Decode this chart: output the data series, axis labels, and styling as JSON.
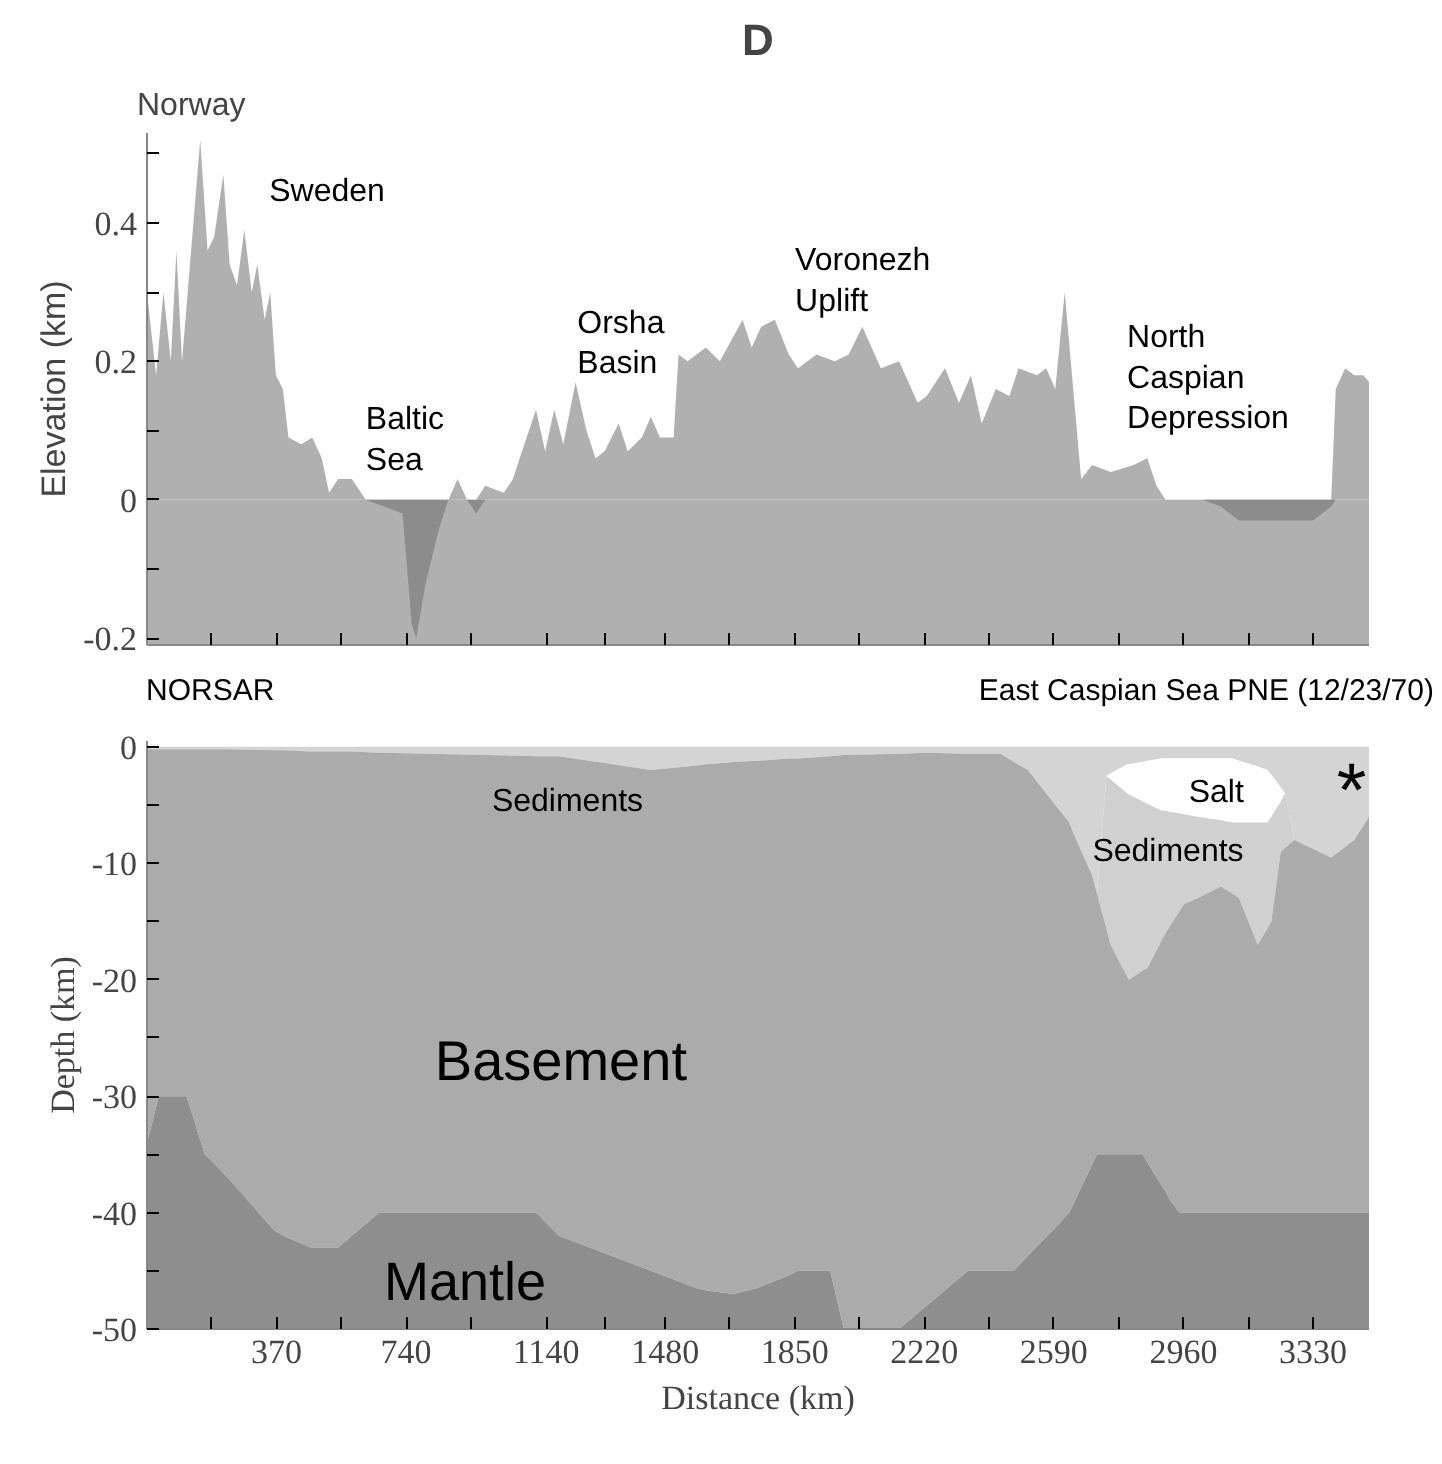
{
  "chart_data": [
    {
      "type": "area",
      "title": "D",
      "ylabel": "Elevation (km)",
      "tick_labels": "y",
      "grid": false,
      "xlim": [
        0,
        3490
      ],
      "ylim": [
        -0.21,
        0.53
      ],
      "xticks": [
        {
          "value": 0,
          "label": null
        },
        {
          "value": 185,
          "label": null
        },
        {
          "value": 370,
          "label": null
        },
        {
          "value": 555,
          "label": null
        },
        {
          "value": 740,
          "label": null
        },
        {
          "value": 925,
          "label": null
        },
        {
          "value": 1140,
          "label": null
        },
        {
          "value": 1310,
          "label": null
        },
        {
          "value": 1480,
          "label": null
        },
        {
          "value": 1665,
          "label": null
        },
        {
          "value": 1850,
          "label": null
        },
        {
          "value": 2035,
          "label": null
        },
        {
          "value": 2220,
          "label": null
        },
        {
          "value": 2405,
          "label": null
        },
        {
          "value": 2590,
          "label": null
        },
        {
          "value": 2775,
          "label": null
        },
        {
          "value": 2960,
          "label": null
        },
        {
          "value": 3145,
          "label": null
        },
        {
          "value": 3330,
          "label": null
        }
      ],
      "yticks": [
        {
          "value": -0.2,
          "label": "-0.2"
        },
        {
          "value": -0.1,
          "label": null
        },
        {
          "value": 0,
          "label": "0"
        },
        {
          "value": 0.1,
          "label": null
        },
        {
          "value": 0.2,
          "label": "0.2"
        },
        {
          "value": 0.3,
          "label": null
        },
        {
          "value": 0.4,
          "label": "0.4"
        },
        {
          "value": 0.5,
          "label": null
        }
      ],
      "bands": [
        {
          "axis": "y",
          "from": -0.21,
          "to": 0,
          "color": "#b0b0b0"
        }
      ],
      "series": [
        {
          "color": "#b0b0b0",
          "x": [
            0,
            26,
            47,
            68,
            84,
            100,
            126,
            152,
            173,
            192,
            218,
            236,
            257,
            278,
            299,
            315,
            336,
            352,
            368,
            388,
            404,
            441,
            472,
            499,
            520,
            546,
            585,
            625,
            730,
            756,
            769,
            796,
            835,
            861,
            887,
            914,
            940,
            966,
            1019,
            1045,
            1071,
            1111,
            1137,
            1163,
            1189,
            1224,
            1255,
            1281,
            1307,
            1347,
            1373,
            1413,
            1439,
            1465,
            1504,
            1518,
            1544,
            1596,
            1636,
            1701,
            1727,
            1754,
            1793,
            1833,
            1859,
            1912,
            1964,
            2004,
            2043,
            2096,
            2148,
            2201,
            2227,
            2279,
            2319,
            2353,
            2384,
            2424,
            2463,
            2489,
            2542,
            2568,
            2594,
            2621,
            2647,
            2668,
            2699,
            2752,
            2818,
            2857,
            2883,
            2909,
            3014,
            3067,
            3119,
            3277,
            3330,
            3382,
            3395,
            3422,
            3448,
            3474,
            3490
          ],
          "values": [
            0.3,
            0.18,
            0.3,
            0.2,
            0.36,
            0.2,
            0.36,
            0.52,
            0.36,
            0.38,
            0.47,
            0.34,
            0.31,
            0.39,
            0.3,
            0.34,
            0.26,
            0.3,
            0.18,
            0.16,
            0.09,
            0.08,
            0.09,
            0.06,
            0.01,
            0.03,
            0.03,
            0,
            0,
            0,
            0,
            0,
            0,
            0,
            0.03,
            0,
            0,
            0.02,
            0.01,
            0.03,
            0.07,
            0.13,
            0.07,
            0.13,
            0.08,
            0.17,
            0.1,
            0.06,
            0.07,
            0.11,
            0.07,
            0.09,
            0.12,
            0.09,
            0.09,
            0.21,
            0.2,
            0.22,
            0.2,
            0.26,
            0.22,
            0.25,
            0.26,
            0.21,
            0.19,
            0.21,
            0.2,
            0.21,
            0.25,
            0.19,
            0.2,
            0.14,
            0.15,
            0.19,
            0.14,
            0.18,
            0.11,
            0.16,
            0.15,
            0.19,
            0.18,
            0.19,
            0.16,
            0.3,
            0.15,
            0.03,
            0.05,
            0.04,
            0.05,
            0.06,
            0.02,
            0,
            0,
            0,
            0,
            0,
            0,
            0,
            0.16,
            0.19,
            0.18,
            0.18,
            0.17
          ]
        },
        {
          "color": "#8c8c8c",
          "x": [
            625,
            730,
            756,
            769,
            796,
            835,
            861,
            887,
            914,
            940,
            966,
            2909,
            3014,
            3067,
            3119,
            3277,
            3330,
            3382,
            3395
          ],
          "values": [
            0,
            -0.02,
            -0.18,
            -0.2,
            -0.12,
            -0.04,
            0,
            null,
            0,
            -0.02,
            0,
            null,
            0,
            -0.01,
            -0.03,
            -0.03,
            -0.03,
            -0.01,
            0
          ]
        }
      ],
      "annotations": [
        "Norway",
        "Sweden",
        "Baltic\nSea",
        "Orsha\nBasin",
        "Voronezh\nUplift",
        "North\nCaspian\nDepression"
      ]
    },
    {
      "type": "area",
      "stacked": true,
      "xlabel": "Distance (km)",
      "ylabel": "Depth (km)",
      "grid": false,
      "xlim": [
        0,
        3490
      ],
      "ylim": [
        -50,
        0.5
      ],
      "xticks": [
        {
          "value": 0,
          "label": null
        },
        {
          "value": 185,
          "label": null
        },
        {
          "value": 370,
          "label": "370"
        },
        {
          "value": 555,
          "label": null
        },
        {
          "value": 740,
          "label": "740"
        },
        {
          "value": 925,
          "label": null
        },
        {
          "value": 1140,
          "label": "1140"
        },
        {
          "value": 1310,
          "label": null
        },
        {
          "value": 1480,
          "label": "1480"
        },
        {
          "value": 1665,
          "label": null
        },
        {
          "value": 1850,
          "label": "1850"
        },
        {
          "value": 2035,
          "label": null
        },
        {
          "value": 2220,
          "label": "2220"
        },
        {
          "value": 2405,
          "label": null
        },
        {
          "value": 2590,
          "label": "2590"
        },
        {
          "value": 2775,
          "label": null
        },
        {
          "value": 2960,
          "label": "2960"
        },
        {
          "value": 3145,
          "label": null
        },
        {
          "value": 3330,
          "label": "3330"
        }
      ],
      "yticks": [
        {
          "value": -50,
          "label": "-50"
        },
        {
          "value": -45,
          "label": null
        },
        {
          "value": -40,
          "label": "-40"
        },
        {
          "value": -35,
          "label": null
        },
        {
          "value": -30,
          "label": "-30"
        },
        {
          "value": -25,
          "label": null
        },
        {
          "value": -20,
          "label": "-20"
        },
        {
          "value": -15,
          "label": null
        },
        {
          "value": -10,
          "label": "-10"
        },
        {
          "value": -5,
          "label": null
        },
        {
          "value": 0,
          "label": "0"
        }
      ],
      "x": [
        0,
        34,
        113,
        165,
        231,
        362,
        389,
        467,
        546,
        585,
        664,
        677,
        1111,
        1176,
        1307,
        1439,
        1570,
        1597,
        1675,
        1741,
        1833,
        1859,
        1951,
        1990,
        2148,
        2227,
        2345,
        2437,
        2476,
        2516,
        2594,
        2634,
        2647,
        2699,
        2713,
        2740,
        2752,
        2800,
        2804,
        2844,
        2857,
        2900,
        2909,
        2923,
        2949,
        2962,
        3000,
        3067,
        3100,
        3119,
        3172,
        3200,
        3211,
        3238,
        3250,
        3277,
        3382,
        3448,
        3490
      ],
      "series": [
        {
          "color": "#d4d4d4",
          "values": [
            -0.2,
            -0.2,
            -0.2,
            -0.2,
            -0.2,
            -0.3,
            -0.3,
            -0.4,
            -0.4,
            -0.4,
            -0.5,
            -0.5,
            -0.8,
            -0.8,
            -1.4,
            -2,
            -1.6,
            -1.5,
            -1.3,
            -1.2,
            -1,
            -1,
            -0.8,
            -0.7,
            -0.6,
            -0.5,
            -0.6,
            -0.6,
            -1.3,
            -2,
            -5,
            -6.5,
            -7.5,
            -11,
            -12.6,
            -2.5,
            -2.3,
            -1.5,
            -1.5,
            -1.3,
            -1.2,
            -1,
            -1,
            -1,
            -1,
            -1,
            -1,
            -1,
            -1,
            -1.2,
            -1.7,
            -2,
            -2.4,
            -3.5,
            -4,
            -8,
            -9.5,
            -8,
            -6
          ]
        },
        {
          "color": "#ffffff",
          "values": [
            0,
            0,
            0,
            0,
            0,
            0,
            0,
            0,
            0,
            0,
            0,
            0,
            0,
            0,
            0,
            0,
            0,
            0,
            0,
            0,
            0,
            0,
            0,
            0,
            0,
            0,
            0,
            0,
            0,
            0,
            0,
            0,
            0,
            0,
            0,
            0,
            -0.5,
            -2.5,
            -2.6,
            -3.4,
            -3.7,
            -4.5,
            -4.5,
            -4.6,
            -4.7,
            -4.8,
            -5,
            -5.3,
            -5.5,
            -5.3,
            -4.8,
            -4.5,
            -3.6,
            -1.2,
            0,
            0,
            0,
            0,
            0
          ]
        },
        {
          "color": "#d0d0d0",
          "values": [
            0,
            0,
            0,
            0,
            0,
            0,
            0,
            0,
            0,
            0,
            0,
            0,
            0,
            0,
            0,
            0,
            0,
            0,
            0,
            0,
            0,
            0,
            0,
            0,
            0,
            0,
            0,
            0,
            0,
            0,
            0,
            0,
            0,
            0,
            0,
            -13.1,
            -14.2,
            -15.8,
            -15.9,
            -14.5,
            -14.1,
            -11,
            -10.5,
            -9.7,
            -8.4,
            -7.7,
            -7,
            -5.7,
            -6.1,
            -6.5,
            -10.5,
            -9.1,
            -9,
            -4.3,
            -4.7,
            0,
            0,
            0,
            0
          ]
        },
        {
          "color": "#ababab",
          "values": [
            -33.8,
            -29.8,
            -29.8,
            -34.8,
            -36.8,
            -41.2,
            -41.7,
            -42.6,
            -42.6,
            -41.6,
            -39.5,
            -39.5,
            -39.2,
            -41.2,
            -42.1,
            -43,
            -44.9,
            -45.2,
            -45.7,
            -45.3,
            -44.4,
            -44,
            -44.2,
            -49.3,
            -49.4,
            -47.5,
            -44.4,
            -44.4,
            -43.7,
            -41.7,
            -36.3,
            -33.5,
            -31.7,
            -24.9,
            -22.4,
            -19.4,
            -18,
            -15.2,
            -15,
            -15.8,
            -16.7,
            -21.3,
            -22.2,
            -23.7,
            -25.9,
            -26.5,
            -27,
            -28,
            -27.4,
            -27,
            -23,
            -24.4,
            -25,
            -31,
            -31.3,
            -32,
            -30.5,
            -32,
            -34
          ]
        },
        {
          "color": "#8e8e8e",
          "values": [
            -16,
            -20,
            -20,
            -15,
            -13,
            -8.5,
            -8,
            -7,
            -7,
            -8,
            -10,
            -10,
            -10,
            -8,
            -6.5,
            -5,
            -3.5,
            -3.3,
            -3,
            -3.5,
            -4.6,
            -5,
            -5,
            0,
            0,
            -2,
            -5,
            -5,
            -5,
            -6.3,
            -8.7,
            -10,
            -10.8,
            -14.1,
            -15,
            -15,
            -15,
            -15,
            -15,
            -15,
            -14.3,
            -12.2,
            -11.8,
            -11,
            -10,
            -10,
            -10,
            -10,
            -10,
            -10,
            -10,
            -10,
            -10,
            -10,
            -10,
            -10,
            -10,
            -10,
            -10
          ]
        }
      ],
      "annotations": [
        "NORSAR",
        "East Caspian Sea PNE (12/23/70)",
        "*",
        "Sediments",
        "Salt",
        "Sediments",
        "Basement",
        "Mantle"
      ]
    }
  ]
}
